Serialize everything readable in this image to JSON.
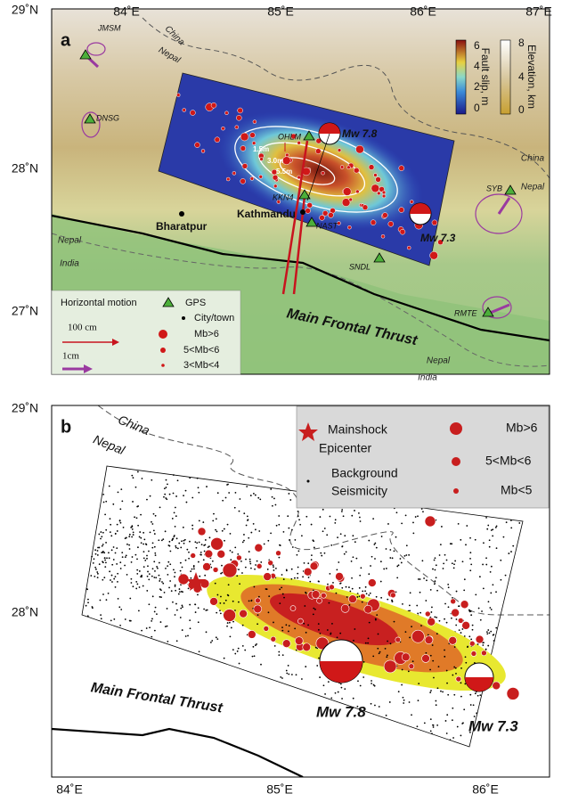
{
  "panel_a": {
    "label": "a",
    "lon_labels": [
      "84˚E",
      "85˚E",
      "86˚E",
      "87˚E"
    ],
    "lat_labels": [
      "29˚N",
      "28˚N",
      "27˚N"
    ],
    "borders": [
      "China",
      "Nepal",
      "China",
      "Nepal",
      "Nepal",
      "India",
      "Nepal",
      "India"
    ],
    "stations": [
      "JMSM",
      "DNSG",
      "OHLM",
      "KKN4",
      "NAST",
      "SNDL",
      "SYB",
      "RMTE"
    ],
    "cities": [
      "Kathmandu",
      "Bharatpur"
    ],
    "events": [
      "Mw  7.8",
      "Mw  7.3"
    ],
    "contours": [
      "1.5m",
      "3.0m",
      "5.5m"
    ],
    "fault": "Main Frontal Thrust",
    "slip_bar": {
      "title": "Fault slip, m",
      "ticks": [
        "0",
        "2",
        "4",
        "6"
      ]
    },
    "elev_bar": {
      "title": "Elevation, km",
      "ticks": [
        "0",
        "4",
        "8"
      ]
    },
    "legend": {
      "title": "Horizontal motion",
      "items": [
        "GPS",
        "City/town",
        "Mb>6",
        "5<Mb<6",
        "3<Mb<4"
      ],
      "scales": [
        "100 cm",
        "1cm"
      ]
    }
  },
  "panel_b": {
    "label": "b",
    "lon_labels": [
      "84˚E",
      "85˚E",
      "86˚E"
    ],
    "lat_labels": [
      "29˚N",
      "28˚N"
    ],
    "borders": [
      "China",
      "Nepal"
    ],
    "legend": {
      "left": [
        "Mainshock",
        "Epicenter",
        "Background",
        "Seismicity"
      ],
      "right": [
        "Mb>6",
        "5<Mb<6",
        "Mb<5"
      ]
    },
    "events": [
      "Mw  7.8",
      "Mw  7.3"
    ],
    "fault": "Main Frontal Thrust"
  }
}
